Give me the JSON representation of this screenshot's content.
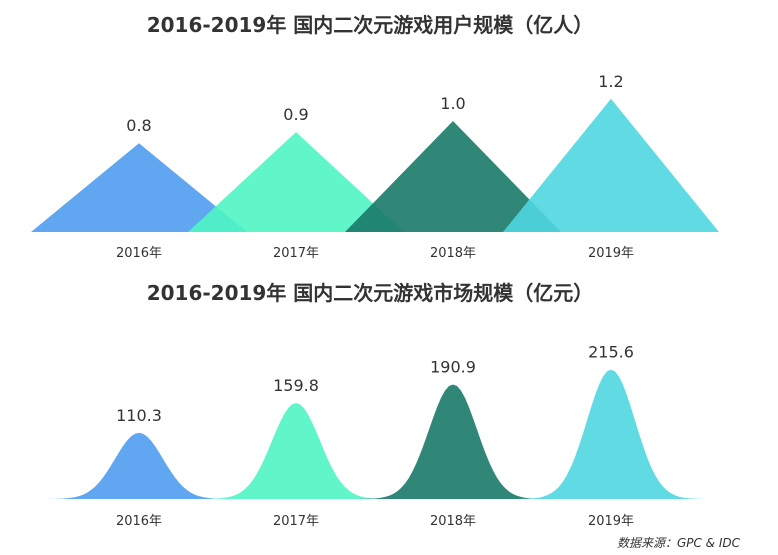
{
  "source": "数据来源：GPC & IDC",
  "colors": [
    "#4f9cee",
    "#4ff5c4",
    "#1a7a68",
    "#4fd6e0"
  ],
  "chart_data": [
    {
      "type": "area",
      "shape": "triangle",
      "title": "2016-2019年  国内二次元游戏用户规模（亿人）",
      "categories": [
        "2016年",
        "2017年",
        "2018年",
        "2019年"
      ],
      "values": [
        0.8,
        0.9,
        1.0,
        1.2
      ],
      "value_labels": [
        "0.8",
        "0.9",
        "1.0",
        "1.2"
      ],
      "xlabel": "",
      "ylabel": ""
    },
    {
      "type": "area",
      "shape": "bell",
      "title": "2016-2019年  国内二次元游戏市场规模（亿元）",
      "categories": [
        "2016年",
        "2017年",
        "2018年",
        "2019年"
      ],
      "values": [
        110.3,
        159.8,
        190.9,
        215.6
      ],
      "value_labels": [
        "110.3",
        "159.8",
        "190.9",
        "215.6"
      ],
      "xlabel": "",
      "ylabel": ""
    }
  ]
}
